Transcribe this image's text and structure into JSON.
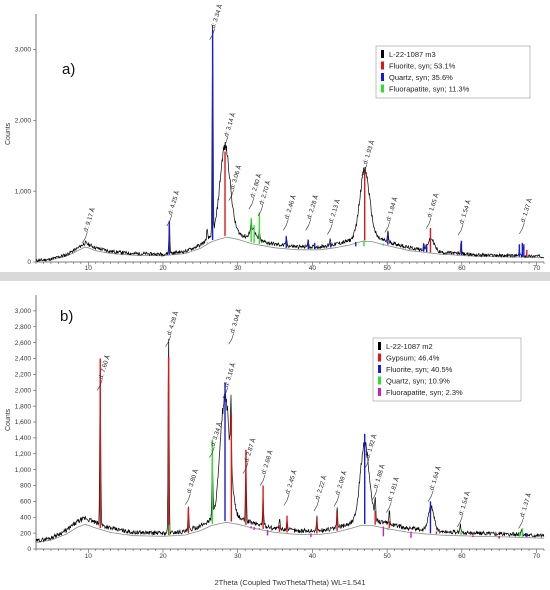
{
  "x_axis_label": "2Theta (Coupled TwoTheta/Theta) WL=1.541",
  "chart_data": [
    {
      "type": "line",
      "panel_label": "a)",
      "ylabel": "Counts",
      "xlim": [
        3,
        71
      ],
      "ylim": [
        0,
        3500
      ],
      "x_ticks": [
        10,
        20,
        30,
        40,
        50,
        60,
        70
      ],
      "y_ticks": [
        0,
        1000,
        2000,
        3000
      ],
      "y_tick_labels": [
        "0",
        "1,000",
        "2,000",
        "3,000"
      ],
      "legend": [
        {
          "label": "L-22-1087 m3",
          "color": "#000000"
        },
        {
          "label": "Fluorite, syn; 53.1%",
          "color": "#e0151b"
        },
        {
          "label": "Quartz, syn; 35.6%",
          "color": "#1a1adb"
        },
        {
          "label": "Fluorapatite, syn; 11.3%",
          "color": "#33dd33"
        }
      ],
      "d_labels": [
        {
          "x": 9.6,
          "y": 380,
          "text": "d: 9.17 Å"
        },
        {
          "x": 20.9,
          "y": 620,
          "text": "d: 4.25 Å"
        },
        {
          "x": 26.65,
          "y": 3250,
          "text": "d: 3.34 Å"
        },
        {
          "x": 28.4,
          "y": 1720,
          "text": "d: 3.14 Å"
        },
        {
          "x": 29.2,
          "y": 980,
          "text": "d: 3.06 Å"
        },
        {
          "x": 31.9,
          "y": 860,
          "text": "d: 2.80 Å"
        },
        {
          "x": 33.1,
          "y": 760,
          "text": "d: 2.70 Å"
        },
        {
          "x": 36.5,
          "y": 560,
          "text": "d: 2.46 Å"
        },
        {
          "x": 39.5,
          "y": 560,
          "text": "d: 2.28 Å"
        },
        {
          "x": 42.4,
          "y": 500,
          "text": "d: 2.13 Å"
        },
        {
          "x": 47.0,
          "y": 1330,
          "text": "d: 1.93 Å"
        },
        {
          "x": 50.1,
          "y": 530,
          "text": "d: 1.84 Å"
        },
        {
          "x": 55.6,
          "y": 580,
          "text": "d: 1.65 Å"
        },
        {
          "x": 59.9,
          "y": 490,
          "text": "d: 1.54 Å"
        },
        {
          "x": 68.1,
          "y": 510,
          "text": "d: 1.37 Å"
        }
      ],
      "measured": {
        "color": "#000000",
        "background": [
          [
            3,
            20
          ],
          [
            5,
            40
          ],
          [
            7,
            100
          ],
          [
            8.5,
            190
          ],
          [
            9.6,
            270
          ],
          [
            11,
            200
          ],
          [
            13,
            150
          ],
          [
            16,
            120
          ],
          [
            20,
            110
          ],
          [
            23,
            150
          ],
          [
            25,
            240
          ],
          [
            26.5,
            360
          ],
          [
            28.5,
            440
          ],
          [
            30,
            400
          ],
          [
            32,
            320
          ],
          [
            35,
            250
          ],
          [
            38,
            215
          ],
          [
            41,
            215
          ],
          [
            43,
            250
          ],
          [
            45,
            300
          ],
          [
            46.5,
            360
          ],
          [
            48,
            360
          ],
          [
            50,
            290
          ],
          [
            53,
            200
          ],
          [
            57,
            140
          ],
          [
            62,
            100
          ],
          [
            66,
            90
          ],
          [
            71,
            80
          ]
        ],
        "broad_peaks": [
          {
            "center": 28.3,
            "width": 0.95,
            "height": 1200
          },
          {
            "center": 47.0,
            "width": 0.9,
            "height": 940
          },
          {
            "center": 55.9,
            "width": 0.6,
            "height": 170
          },
          {
            "center": 32.0,
            "width": 0.5,
            "height": 160
          }
        ],
        "sharp_peaks": [
          {
            "x": 20.85,
            "h": 460
          },
          {
            "x": 26.64,
            "h": 2850
          },
          {
            "x": 36.5,
            "h": 130
          },
          {
            "x": 39.4,
            "h": 100
          },
          {
            "x": 42.4,
            "h": 90
          },
          {
            "x": 50.1,
            "h": 170
          },
          {
            "x": 54.9,
            "h": 80
          },
          {
            "x": 59.9,
            "h": 170
          },
          {
            "x": 67.7,
            "h": 90
          },
          {
            "x": 68.2,
            "h": 130
          },
          {
            "x": 25.9,
            "h": 140
          },
          {
            "x": 31.8,
            "h": 120
          },
          {
            "x": 32.9,
            "h": 150
          }
        ]
      },
      "reference_series": [
        {
          "name": "Quartz",
          "color": "#1a1adb",
          "sticks": [
            [
              20.85,
              580
            ],
            [
              26.64,
              3280
            ],
            [
              36.5,
              360
            ],
            [
              39.45,
              310
            ],
            [
              40.3,
              270
            ],
            [
              42.45,
              270
            ],
            [
              45.8,
              220
            ],
            [
              50.1,
              380
            ],
            [
              54.9,
              260
            ],
            [
              55.3,
              230
            ],
            [
              59.95,
              300
            ],
            [
              67.7,
              250
            ],
            [
              68.1,
              270
            ],
            [
              68.3,
              250
            ]
          ]
        },
        {
          "name": "Fluorite",
          "color": "#e0151b",
          "sticks": [
            [
              28.3,
              1560
            ],
            [
              47.0,
              1280
            ],
            [
              55.8,
              480
            ],
            [
              68.7,
              170
            ]
          ]
        },
        {
          "name": "Fluorapatite",
          "color": "#33dd33",
          "sticks": [
            [
              25.9,
              280
            ],
            [
              31.8,
              620
            ],
            [
              32.2,
              520
            ],
            [
              32.9,
              700
            ],
            [
              34.0,
              250
            ],
            [
              39.8,
              200
            ],
            [
              46.9,
              220
            ],
            [
              49.5,
              230
            ],
            [
              53.2,
              190
            ]
          ]
        }
      ]
    },
    {
      "type": "line",
      "panel_label": "b)",
      "ylabel": "Counts",
      "xlim": [
        3,
        71
      ],
      "ylim": [
        0,
        3200
      ],
      "x_ticks": [
        10,
        20,
        30,
        40,
        50,
        60,
        70
      ],
      "y_ticks": [
        0,
        200,
        400,
        600,
        800,
        1000,
        1200,
        1400,
        1600,
        1800,
        2000,
        2200,
        2400,
        2600,
        2800,
        3000
      ],
      "y_tick_labels": [
        "0",
        "200",
        "400",
        "600",
        "800",
        "1,000",
        "1,200",
        "1,400",
        "1,600",
        "1,800",
        "2,000",
        "2,200",
        "2,400",
        "2,600",
        "2,800",
        "3,000"
      ],
      "legend": [
        {
          "label": "L-22-1087 m2",
          "color": "#000000"
        },
        {
          "label": "Gypsum; 46.4%",
          "color": "#e0151b"
        },
        {
          "label": "Fluorite, syn; 40.5%",
          "color": "#1a1adb"
        },
        {
          "label": "Quartz, syn; 10.9%",
          "color": "#33dd33"
        },
        {
          "label": "Fluorapatite, syn; 2.3%",
          "color": "#c81ec8"
        }
      ],
      "d_labels": [
        {
          "x": 11.6,
          "y": 2100,
          "text": "d: 7.60 Å"
        },
        {
          "x": 20.75,
          "y": 2650,
          "text": "d: 4.28 Å"
        },
        {
          "x": 23.4,
          "y": 660,
          "text": "d: 3.80 Å"
        },
        {
          "x": 26.6,
          "y": 1250,
          "text": "d: 3.34 Å"
        },
        {
          "x": 28.4,
          "y": 2000,
          "text": "d: 3.16 Å"
        },
        {
          "x": 29.2,
          "y": 2680,
          "text": "d: 3.04 Å"
        },
        {
          "x": 31.1,
          "y": 1050,
          "text": "d: 2.87 Å"
        },
        {
          "x": 33.4,
          "y": 900,
          "text": "d: 2.68 Å"
        },
        {
          "x": 36.6,
          "y": 650,
          "text": "d: 2.45 Å"
        },
        {
          "x": 40.6,
          "y": 580,
          "text": "d: 2.22 Å"
        },
        {
          "x": 43.3,
          "y": 640,
          "text": "d: 2.09 Å"
        },
        {
          "x": 47.3,
          "y": 1100,
          "text": "d: 1.92 Å"
        },
        {
          "x": 48.4,
          "y": 720,
          "text": "d: 1.88 Å"
        },
        {
          "x": 50.3,
          "y": 560,
          "text": "d: 1.81 Å"
        },
        {
          "x": 55.9,
          "y": 700,
          "text": "d: 1.64 Å"
        },
        {
          "x": 59.8,
          "y": 380,
          "text": "d: 1.54 Å"
        },
        {
          "x": 68.0,
          "y": 360,
          "text": "d: 1.37 Å"
        }
      ],
      "measured": {
        "color": "#000000",
        "background": [
          [
            3,
            100
          ],
          [
            5,
            140
          ],
          [
            7,
            230
          ],
          [
            8.5,
            340
          ],
          [
            9.6,
            390
          ],
          [
            11,
            330
          ],
          [
            13,
            260
          ],
          [
            16,
            210
          ],
          [
            20,
            200
          ],
          [
            23,
            220
          ],
          [
            25,
            290
          ],
          [
            26.5,
            370
          ],
          [
            28.5,
            420
          ],
          [
            30,
            390
          ],
          [
            32,
            330
          ],
          [
            35,
            260
          ],
          [
            38,
            230
          ],
          [
            41,
            230
          ],
          [
            43,
            260
          ],
          [
            45,
            320
          ],
          [
            46.5,
            370
          ],
          [
            48,
            370
          ],
          [
            50,
            320
          ],
          [
            53,
            260
          ],
          [
            57,
            220
          ],
          [
            62,
            200
          ],
          [
            66,
            190
          ],
          [
            71,
            170
          ]
        ],
        "broad_peaks": [
          {
            "center": 28.3,
            "width": 0.9,
            "height": 1500
          },
          {
            "center": 47.0,
            "width": 0.85,
            "height": 950
          },
          {
            "center": 55.9,
            "width": 0.55,
            "height": 300
          }
        ],
        "sharp_peaks": [
          {
            "x": 11.6,
            "h": 2000
          },
          {
            "x": 20.75,
            "h": 2450
          },
          {
            "x": 23.4,
            "h": 280
          },
          {
            "x": 26.6,
            "h": 800
          },
          {
            "x": 29.1,
            "h": 900
          },
          {
            "x": 31.1,
            "h": 750
          },
          {
            "x": 33.4,
            "h": 380
          },
          {
            "x": 35.6,
            "h": 120
          },
          {
            "x": 36.6,
            "h": 160
          },
          {
            "x": 40.6,
            "h": 180
          },
          {
            "x": 43.3,
            "h": 250
          },
          {
            "x": 48.4,
            "h": 220
          },
          {
            "x": 50.3,
            "h": 180
          },
          {
            "x": 59.8,
            "h": 100
          },
          {
            "x": 68.0,
            "h": 90
          }
        ]
      },
      "reference_series": [
        {
          "name": "Gypsum",
          "color": "#e0151b",
          "sticks": [
            [
              11.6,
              2400
            ],
            [
              20.75,
              2420
            ],
            [
              23.4,
              520
            ],
            [
              29.15,
              1700
            ],
            [
              31.1,
              1250
            ],
            [
              33.4,
              800
            ],
            [
              35.6,
              300
            ],
            [
              36.6,
              420
            ],
            [
              40.6,
              380
            ],
            [
              43.3,
              460
            ],
            [
              48.4,
              480
            ],
            [
              50.3,
              350
            ],
            [
              51.3,
              250
            ],
            [
              56.6,
              220
            ],
            [
              61.5,
              150
            ],
            [
              65,
              130
            ]
          ]
        },
        {
          "name": "Fluorite",
          "color": "#1a1adb",
          "sticks": [
            [
              28.3,
              2100
            ],
            [
              47.0,
              1450
            ],
            [
              55.8,
              600
            ],
            [
              68.7,
              200
            ]
          ]
        },
        {
          "name": "Quartz",
          "color": "#33dd33",
          "sticks": [
            [
              20.85,
              300
            ],
            [
              26.6,
              1380
            ],
            [
              36.5,
              220
            ],
            [
              39.5,
              200
            ],
            [
              50.1,
              240
            ],
            [
              59.9,
              220
            ],
            [
              67.7,
              210
            ],
            [
              68.1,
              260
            ]
          ]
        },
        {
          "name": "Fluorapatite",
          "color": "#c81ec8",
          "sticks": [
            [
              31.8,
              260
            ],
            [
              32.2,
              240
            ],
            [
              32.9,
              250
            ],
            [
              34.0,
              170
            ],
            [
              39.8,
              150
            ],
            [
              49.5,
              160
            ],
            [
              53.2,
              140
            ]
          ]
        }
      ]
    }
  ]
}
